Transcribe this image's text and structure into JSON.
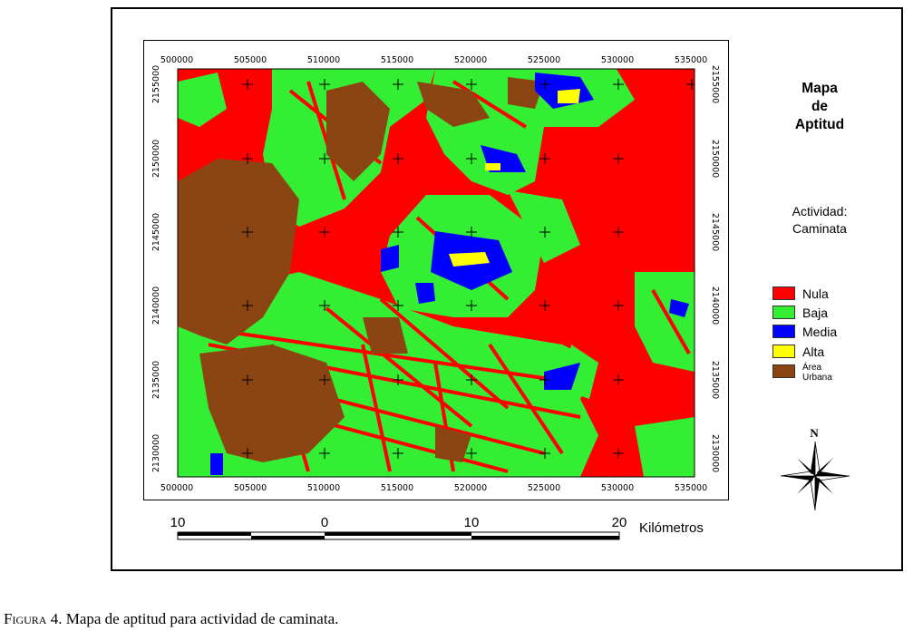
{
  "map": {
    "title_lines": [
      "Mapa",
      "de",
      "Aptitud"
    ],
    "activity_lines": [
      "Actividad:",
      "Caminata"
    ],
    "x_ticks": [
      "500000",
      "505000",
      "510000",
      "515000",
      "520000",
      "525000",
      "530000",
      "535000"
    ],
    "y_ticks": [
      "2155000",
      "2150000",
      "2145000",
      "2140000",
      "2135000",
      "2130000"
    ],
    "legend": [
      {
        "label": "Nula",
        "color": "#ff0000"
      },
      {
        "label": "Baja",
        "color": "#33ee33"
      },
      {
        "label": "Media",
        "color": "#0000ff"
      },
      {
        "label": "Alta",
        "color": "#ffff00"
      },
      {
        "label": "Área\nUrbana",
        "color": "#8b4513"
      }
    ],
    "north_label": "N",
    "scale": {
      "labels": [
        "10",
        "0",
        "10",
        "20"
      ],
      "unit": "Kilómetros"
    }
  },
  "caption": {
    "prefix": "Figura",
    "rest": " 4. Mapa de aptitud para actividad de caminata."
  }
}
